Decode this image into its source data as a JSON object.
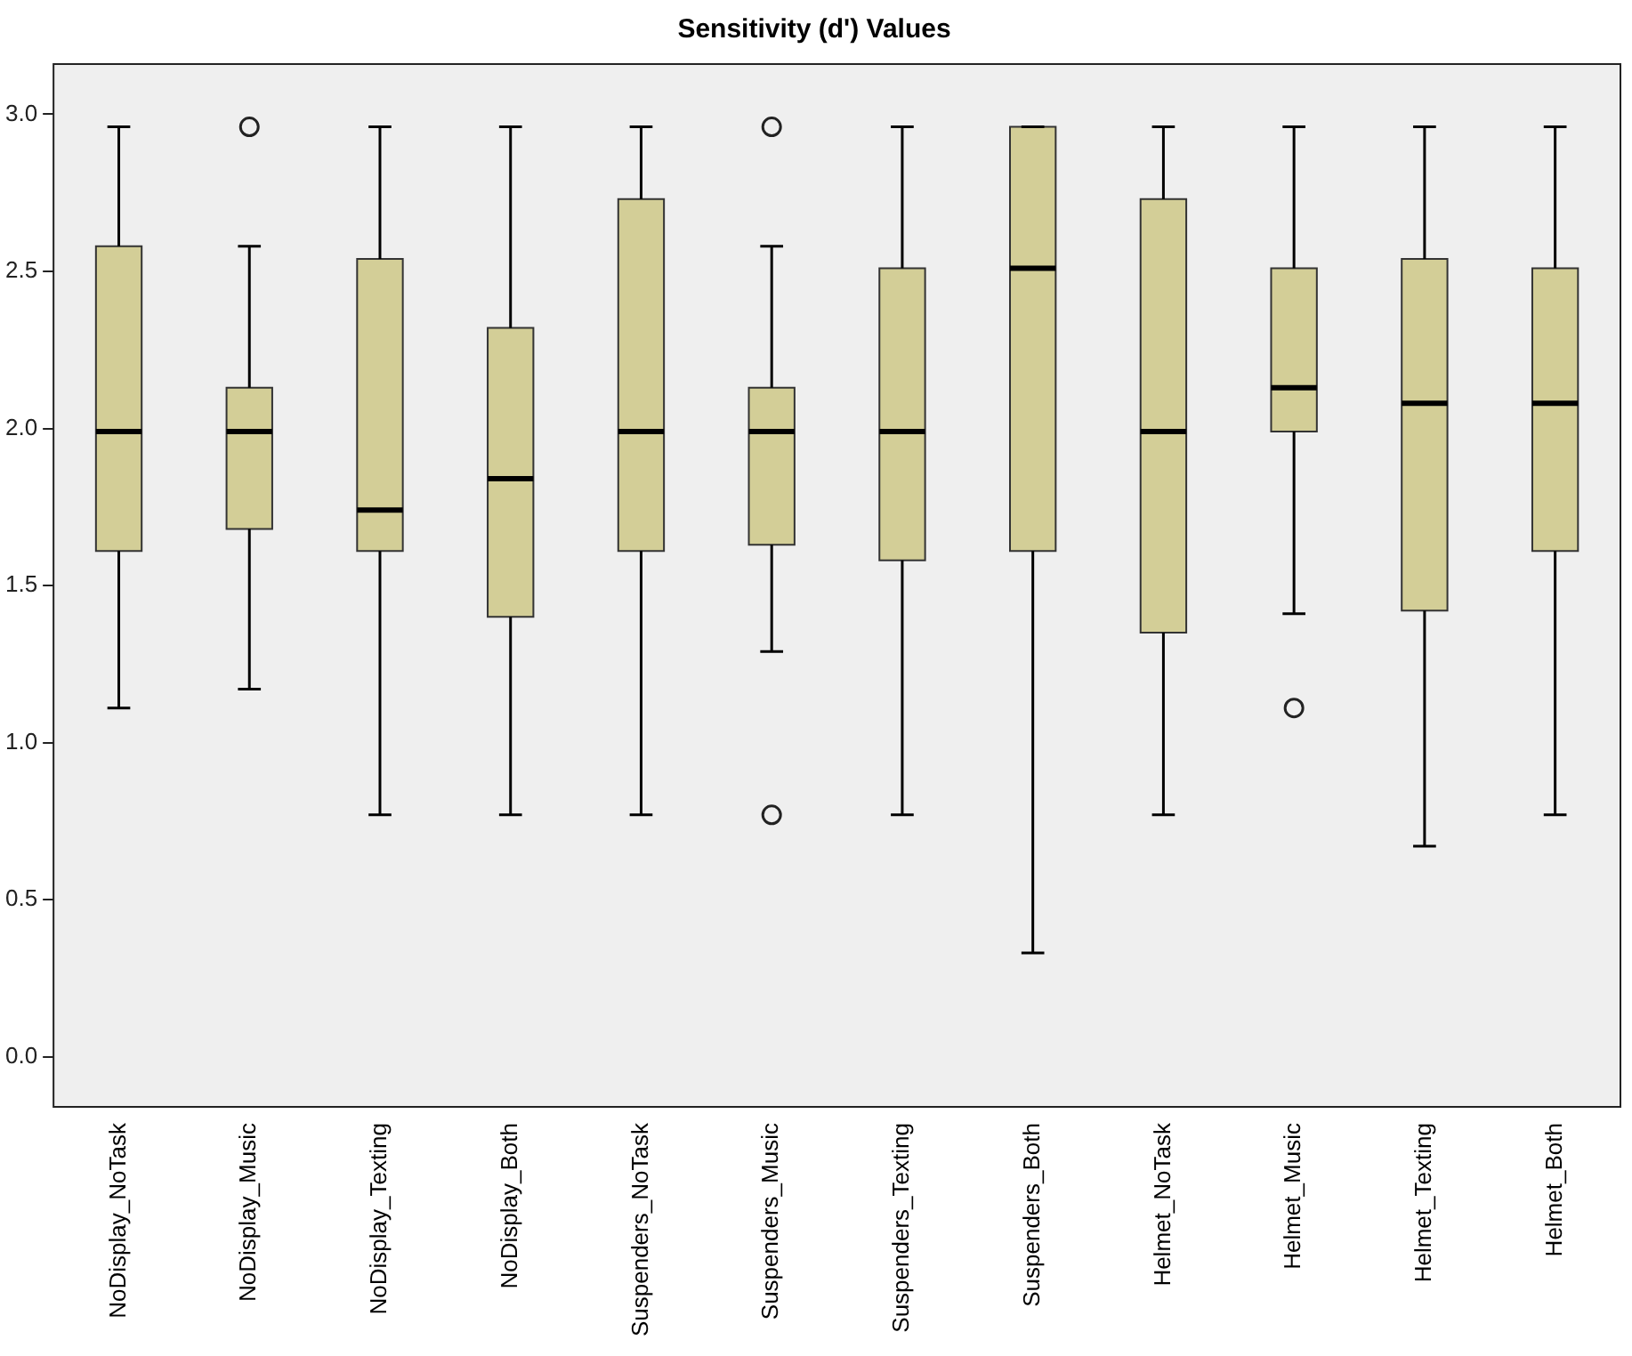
{
  "chart_data": {
    "type": "box",
    "title": "Sensitivity (d') Values",
    "categories": [
      "NoDisplay_NoTask",
      "NoDisplay_Music",
      "NoDisplay_Texting",
      "NoDisplay_Both",
      "Suspenders_NoTask",
      "Suspenders_Music",
      "Suspenders_Texting",
      "Suspenders_Both",
      "Helmet_NoTask",
      "Helmet_Music",
      "Helmet_Texting",
      "Helmet_Both"
    ],
    "color": "#d3ce97",
    "boxes": [
      {
        "low": 1.11,
        "q1": 1.61,
        "median": 1.99,
        "q3": 2.58,
        "high": 2.96
      },
      {
        "low": 1.17,
        "q1": 1.68,
        "median": 1.99,
        "q3": 2.13,
        "high": 2.58,
        "outliers": [
          2.96
        ]
      },
      {
        "low": 0.77,
        "q1": 1.61,
        "median": 1.74,
        "q3": 2.54,
        "high": 2.96
      },
      {
        "low": 0.77,
        "q1": 1.4,
        "median": 1.84,
        "q3": 2.32,
        "high": 2.96
      },
      {
        "low": 0.77,
        "q1": 1.61,
        "median": 1.99,
        "q3": 2.73,
        "high": 2.96
      },
      {
        "low": 1.29,
        "q1": 1.63,
        "median": 1.99,
        "q3": 2.13,
        "high": 2.58,
        "outliers": [
          2.96,
          0.77
        ]
      },
      {
        "low": 0.77,
        "q1": 1.58,
        "median": 1.99,
        "q3": 2.51,
        "high": 2.96
      },
      {
        "low": 0.33,
        "q1": 1.61,
        "median": 2.51,
        "q3": 2.96,
        "high": 2.96
      },
      {
        "low": 0.77,
        "q1": 1.35,
        "median": 1.99,
        "q3": 2.73,
        "high": 2.96
      },
      {
        "low": 1.41,
        "q1": 1.99,
        "median": 2.13,
        "q3": 2.51,
        "high": 2.96,
        "outliers": [
          1.11
        ]
      },
      {
        "low": 0.67,
        "q1": 1.42,
        "median": 2.08,
        "q3": 2.54,
        "high": 2.96
      },
      {
        "low": 0.77,
        "q1": 1.61,
        "median": 2.08,
        "q3": 2.51,
        "high": 2.96
      }
    ],
    "ylim": [
      -0.16,
      3.16
    ],
    "yticks": [
      {
        "value": 0,
        "label": "0.0"
      },
      {
        "value": 0.5,
        "label": "0.5"
      },
      {
        "value": 1,
        "label": "1.0"
      },
      {
        "value": 1.5,
        "label": "1.5"
      },
      {
        "value": 2,
        "label": "2.0"
      },
      {
        "value": 2.5,
        "label": "2.5"
      },
      {
        "value": 3,
        "label": "3.0"
      }
    ],
    "grid": false,
    "legend": false
  }
}
